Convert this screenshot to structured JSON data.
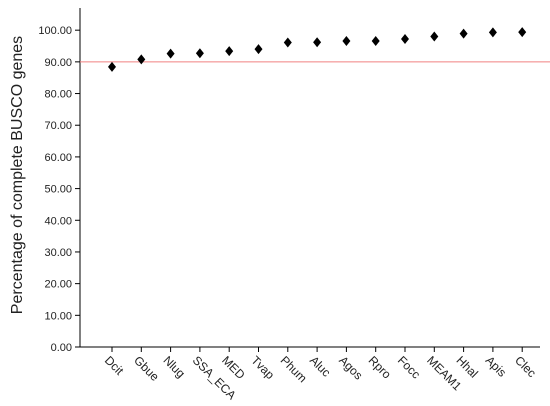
{
  "chart_data": {
    "type": "dot",
    "y_label": "Percentage of complete BUSCO genes",
    "categories": [
      "Dcit",
      "Gbue",
      "Nlug",
      "SSA_ECA",
      "MED",
      "Tvap",
      "Phum",
      "Aluc",
      "Agos",
      "Rpro",
      "Focc",
      "MEAM1",
      "Hhal",
      "Apis",
      "Clec"
    ],
    "values": [
      88.4,
      90.8,
      92.6,
      92.7,
      93.4,
      94.0,
      96.1,
      96.2,
      96.6,
      96.6,
      97.2,
      98.0,
      98.9,
      99.3,
      99.4
    ],
    "color": "#000000",
    "reference_line": 90,
    "reference_color": "#f08080",
    "ylim": [
      0,
      107
    ],
    "yticks": [
      {
        "value": 0,
        "label": "0.00"
      },
      {
        "value": 10,
        "label": "10.00"
      },
      {
        "value": 20,
        "label": "20.00"
      },
      {
        "value": 30,
        "label": "30.00"
      },
      {
        "value": 40,
        "label": "40.00"
      },
      {
        "value": 50,
        "label": "50.00"
      },
      {
        "value": 60,
        "label": "60.00"
      },
      {
        "value": 70,
        "label": "70.00"
      },
      {
        "value": 80,
        "label": "80.00"
      },
      {
        "value": 90,
        "label": "90.00"
      },
      {
        "value": 100,
        "label": "100.00"
      }
    ]
  }
}
